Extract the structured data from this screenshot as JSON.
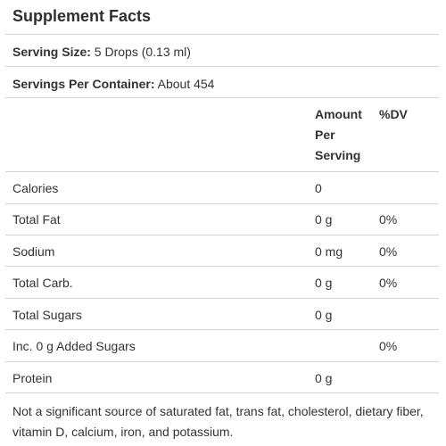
{
  "title": "Supplement Facts",
  "serving_size": {
    "label": "Serving Size:",
    "value": " 5 Drops (0.13 ml)"
  },
  "servings_per_container": {
    "label": "Servings Per Container:",
    "value": " About 454"
  },
  "columns": {
    "amount_line1": "Amount",
    "amount_line2": "Per",
    "amount_line3": "Serving",
    "dv": "%DV"
  },
  "rows": [
    {
      "name": "Calories",
      "amount": "0",
      "dv": ""
    },
    {
      "name": "Total Fat",
      "amount": "0 g",
      "dv": "0%"
    },
    {
      "name": "Sodium",
      "amount": "0 mg",
      "dv": "0%"
    },
    {
      "name": "Total Carb.",
      "amount": "0 g",
      "dv": "0%"
    },
    {
      "name": "Total Sugars",
      "amount": "0 g",
      "dv": ""
    },
    {
      "name": "Inc. 0 g Added Sugars",
      "amount": "",
      "dv": "0%"
    },
    {
      "name": "Protein",
      "amount": "0 g",
      "dv": ""
    }
  ],
  "footnote": "Not a significant source of saturated fat, trans fat, cholesterol, dietary fiber, vitamin D, calcium, iron, and potassium."
}
